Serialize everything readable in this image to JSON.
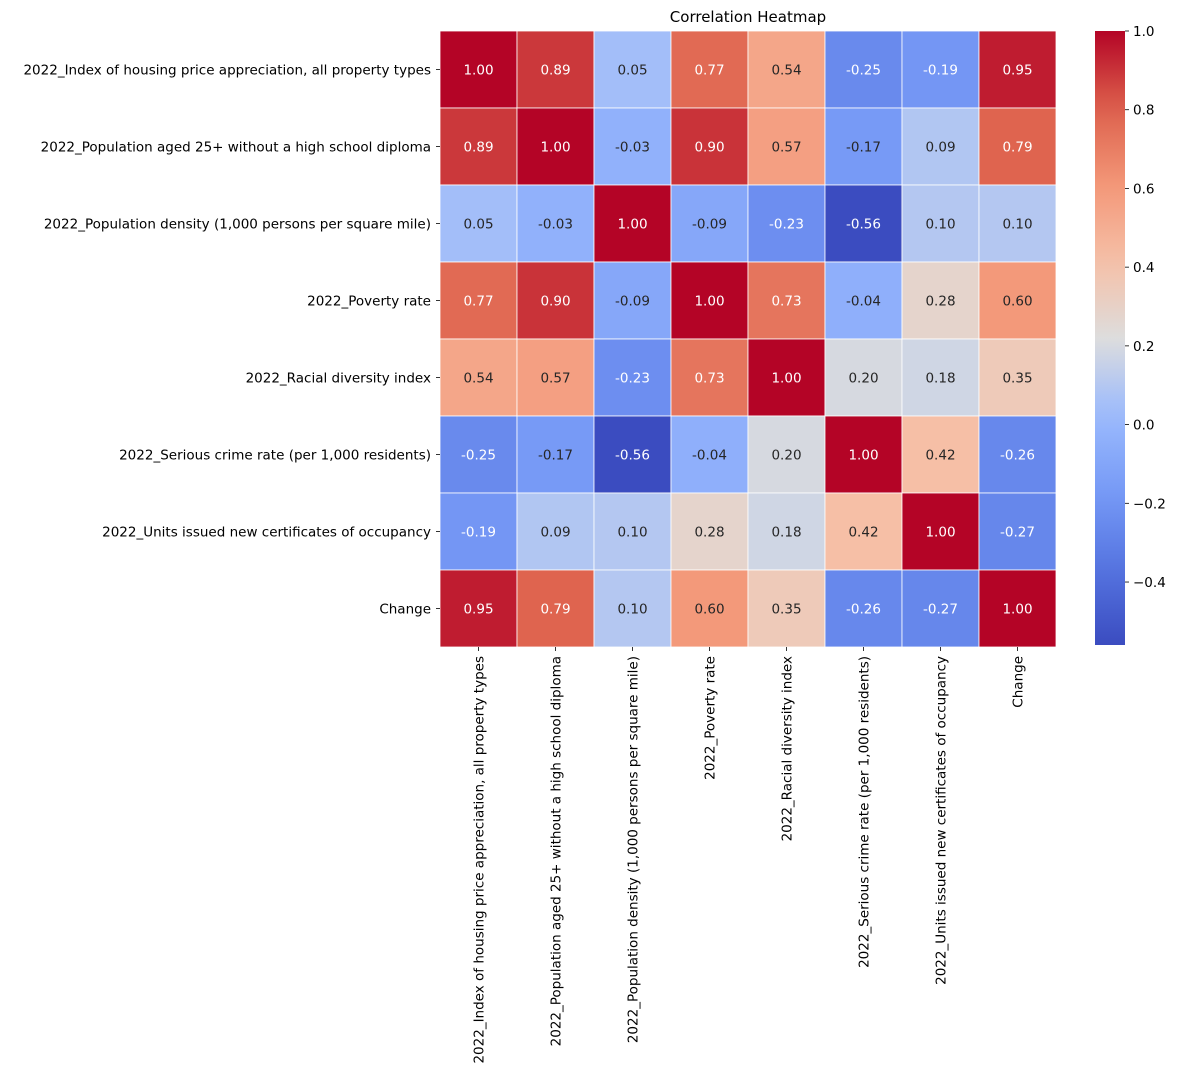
{
  "chart_data": {
    "type": "heatmap",
    "title": "Correlation Heatmap",
    "labels": [
      "2022_Index of housing price appreciation, all property types",
      "2022_Population aged 25+ without a high school diploma",
      "2022_Population density (1,000 persons per square mile)",
      "2022_Poverty rate",
      "2022_Racial diversity index",
      "2022_Serious crime rate (per 1,000 residents)",
      "2022_Units issued new certificates of occupancy",
      "Change"
    ],
    "values": [
      [
        1.0,
        0.89,
        0.05,
        0.77,
        0.54,
        -0.25,
        -0.19,
        0.95
      ],
      [
        0.89,
        1.0,
        -0.03,
        0.9,
        0.57,
        -0.17,
        0.09,
        0.79
      ],
      [
        0.05,
        -0.03,
        1.0,
        -0.09,
        -0.23,
        -0.56,
        0.1,
        0.1
      ],
      [
        0.77,
        0.9,
        -0.09,
        1.0,
        0.73,
        -0.04,
        0.28,
        0.6
      ],
      [
        0.54,
        0.57,
        -0.23,
        0.73,
        1.0,
        0.2,
        0.18,
        0.35
      ],
      [
        -0.25,
        -0.17,
        -0.56,
        -0.04,
        0.2,
        1.0,
        0.42,
        -0.26
      ],
      [
        -0.19,
        0.09,
        0.1,
        0.28,
        0.18,
        0.42,
        1.0,
        -0.27
      ],
      [
        0.95,
        0.79,
        0.1,
        0.6,
        0.35,
        -0.26,
        -0.27,
        1.0
      ]
    ],
    "value_format": "2 decimals",
    "colormap": "coolwarm",
    "colorbar": {
      "range": [
        -0.56,
        1.0
      ],
      "ticks": [
        -0.4,
        -0.2,
        0.0,
        0.2,
        0.4,
        0.6,
        0.8,
        1.0
      ],
      "tick_labels": [
        "−0.4",
        "−0.2",
        "0.0",
        "0.2",
        "0.4",
        "0.6",
        "0.8",
        "1.0"
      ]
    },
    "grid_lines": true,
    "xlabel": "",
    "ylabel": ""
  }
}
